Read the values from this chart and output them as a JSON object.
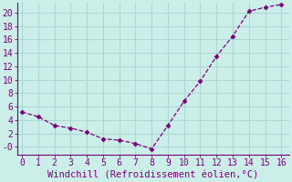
{
  "x": [
    0,
    1,
    2,
    3,
    4,
    5,
    6,
    7,
    8,
    9,
    10,
    11,
    12,
    13,
    14,
    15,
    16
  ],
  "y": [
    5.2,
    4.5,
    3.2,
    2.8,
    2.2,
    1.2,
    1.0,
    0.5,
    -0.3,
    3.2,
    6.8,
    9.8,
    13.5,
    16.5,
    20.2,
    20.8,
    21.2
  ],
  "line_color": "#7B007B",
  "marker": "D",
  "marker_size": 2.5,
  "xlabel": "Windchill (Refroidissement éolien,°C)",
  "xlabel_color": "#7B007B",
  "xlabel_fontsize": 7.5,
  "bg_color": "#cceee8",
  "grid_color": "#aad8d2",
  "tick_color": "#7B007B",
  "spine_color": "#7B007B",
  "ylim": [
    -1.2,
    21.5
  ],
  "xlim": [
    -0.3,
    16.5
  ],
  "yticks": [
    0,
    2,
    4,
    6,
    8,
    10,
    12,
    14,
    16,
    18,
    20
  ],
  "ytick_labels": [
    "-0",
    "2",
    "4",
    "6",
    "8",
    "10",
    "12",
    "14",
    "16",
    "18",
    "20"
  ],
  "xticks": [
    0,
    1,
    2,
    3,
    4,
    5,
    6,
    7,
    8,
    9,
    10,
    11,
    12,
    13,
    14,
    15,
    16
  ],
  "tick_fontsize": 7
}
